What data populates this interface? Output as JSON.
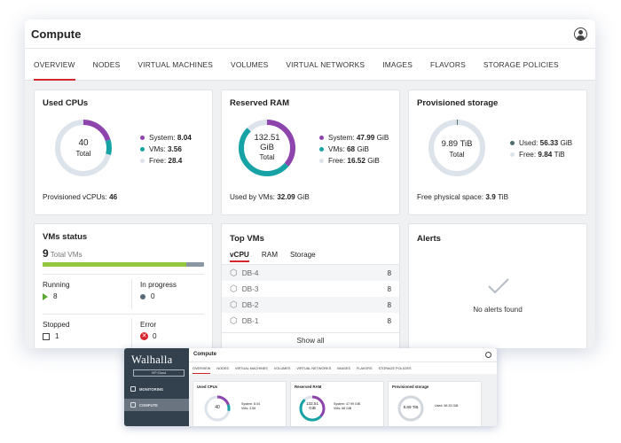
{
  "window": {
    "title": "Compute"
  },
  "tabs": [
    "OVERVIEW",
    "NODES",
    "VIRTUAL MACHINES",
    "VOLUMES",
    "VIRTUAL NETWORKS",
    "IMAGES",
    "FLAVORS",
    "STORAGE POLICIES"
  ],
  "active_tab": "OVERVIEW",
  "colors": {
    "system": "#8e44ad",
    "vms": "#17a3a6",
    "free": "#dde3ea",
    "used": "#4e6b70",
    "accent": "#d6262d",
    "bar_running": "#93c83e",
    "bar_other": "#8a96a3"
  },
  "used_cpus": {
    "title": "Used CPUs",
    "total": "40",
    "total_label": "Total",
    "legend": [
      {
        "label": "System:",
        "value": "8.04",
        "num": 8.04,
        "color": "#8e44ad"
      },
      {
        "label": "VMs:",
        "value": "3.56",
        "num": 3.56,
        "color": "#17a3a6"
      },
      {
        "label": "Free:",
        "value": "28.4",
        "num": 28.4,
        "color": "#dde3ea"
      }
    ],
    "footer_label": "Provisioned vCPUs:",
    "footer_value": "46"
  },
  "reserved_ram": {
    "title": "Reserved RAM",
    "total_line1": "132.51",
    "total_line2": "GiB",
    "total_label": "Total",
    "legend": [
      {
        "label": "System:",
        "value": "47.99",
        "unit": "GiB",
        "num": 47.99,
        "color": "#8e44ad"
      },
      {
        "label": "VMs:",
        "value": "68",
        "unit": "GiB",
        "num": 68,
        "color": "#17a3a6"
      },
      {
        "label": "Free:",
        "value": "16.52",
        "unit": "GiB",
        "num": 16.52,
        "color": "#dde3ea"
      }
    ],
    "footer_label": "Used by VMs:",
    "footer_value": "32.09",
    "footer_unit": "GiB"
  },
  "provisioned_storage": {
    "title": "Provisioned storage",
    "total": "9.89 TiB",
    "total_label": "Total",
    "legend": [
      {
        "label": "Used:",
        "value": "56.33",
        "unit": "GiB",
        "num": 56.33,
        "color": "#4e6b70"
      },
      {
        "label": "Free:",
        "value": "9.84",
        "unit": "TiB",
        "num": 10076.16,
        "color": "#dde3ea"
      }
    ],
    "footer_label": "Free physical space:",
    "footer_value": "3.9",
    "footer_unit": "TiB"
  },
  "vms_status": {
    "title": "VMs status",
    "count": "9",
    "count_label": "Total VMs",
    "running_fraction": 0.89,
    "running_label": "Running",
    "running_value": "8",
    "in_progress_label": "In progress",
    "in_progress_value": "0",
    "stopped_label": "Stopped",
    "stopped_value": "1",
    "error_label": "Error",
    "error_value": "0"
  },
  "top_vms": {
    "title": "Top VMs",
    "tabs": [
      "vCPU",
      "RAM",
      "Storage"
    ],
    "rows": [
      {
        "name": "DB-4",
        "value": "8"
      },
      {
        "name": "DB-3",
        "value": "8"
      },
      {
        "name": "DB-2",
        "value": "8"
      },
      {
        "name": "DB-1",
        "value": "8"
      }
    ],
    "show_all": "Show all"
  },
  "alerts": {
    "title": "Alerts",
    "empty_text": "No alerts found"
  },
  "mini": {
    "logo": "Walhalla",
    "sub": "VIP-Cloud",
    "nav": [
      "MONITORING",
      "COMPUTE"
    ],
    "title": "Compute",
    "tabs": [
      "OVERVIEW",
      "NODES",
      "VIRTUAL MACHINES",
      "VOLUMES",
      "VIRTUAL NETWORKS",
      "IMAGES",
      "FLAVORS",
      "STORAGE POLICIES"
    ],
    "cards": [
      {
        "title": "Used CPUs",
        "center": "40",
        "legend": [
          "System: 8.04",
          "VMs: 3.56",
          "Free: 28.4"
        ]
      },
      {
        "title": "Reserved RAM",
        "center": "132.51",
        "center2": "GiB",
        "legend": [
          "System: 47.99 GiB",
          "VMs: 68 GiB",
          "Free: 16.52 GiB"
        ]
      },
      {
        "title": "Provisioned storage",
        "center": "9.89 TiB",
        "legend": [
          "Used: 56.33 GiB",
          "Free: 9.84 TiB"
        ]
      }
    ]
  }
}
